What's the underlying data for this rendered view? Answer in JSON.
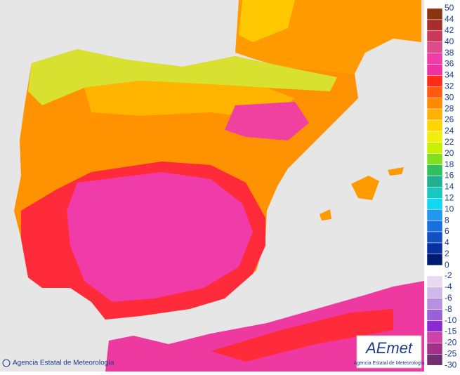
{
  "legend": {
    "upper": {
      "labels": [
        50,
        44,
        42,
        40,
        38,
        36,
        34,
        32,
        30,
        28,
        26,
        24,
        22,
        20,
        18,
        16,
        14,
        12,
        10,
        8,
        6,
        4,
        2,
        0
      ],
      "colors": [
        "#8c3210",
        "#a82e2e",
        "#c8385a",
        "#de4a8a",
        "#f03ca8",
        "#ee30a0",
        "#ff2a1a",
        "#ff5a10",
        "#ff8a00",
        "#ffb000",
        "#ffd400",
        "#f2ee10",
        "#c8f000",
        "#80e020",
        "#30c060",
        "#20b090",
        "#18c8c0",
        "#10d8f0",
        "#2098f0",
        "#1870e0",
        "#1050c0",
        "#0830a0",
        "#001a70"
      ]
    },
    "lower": {
      "labels": [
        -2,
        -4,
        -6,
        -8,
        -10,
        -15,
        -20,
        -25,
        -30
      ],
      "colors": [
        "#e8d8f0",
        "#d0b8e8",
        "#b890e0",
        "#9a60d8",
        "#8a2ad0",
        "#d040a8",
        "#a03088",
        "#703070"
      ]
    }
  },
  "credit": "Agencia Estatal de Meteorología",
  "logo": {
    "name": "AEmet",
    "subtitle": "Agencia Estatal de Meteorología"
  }
}
